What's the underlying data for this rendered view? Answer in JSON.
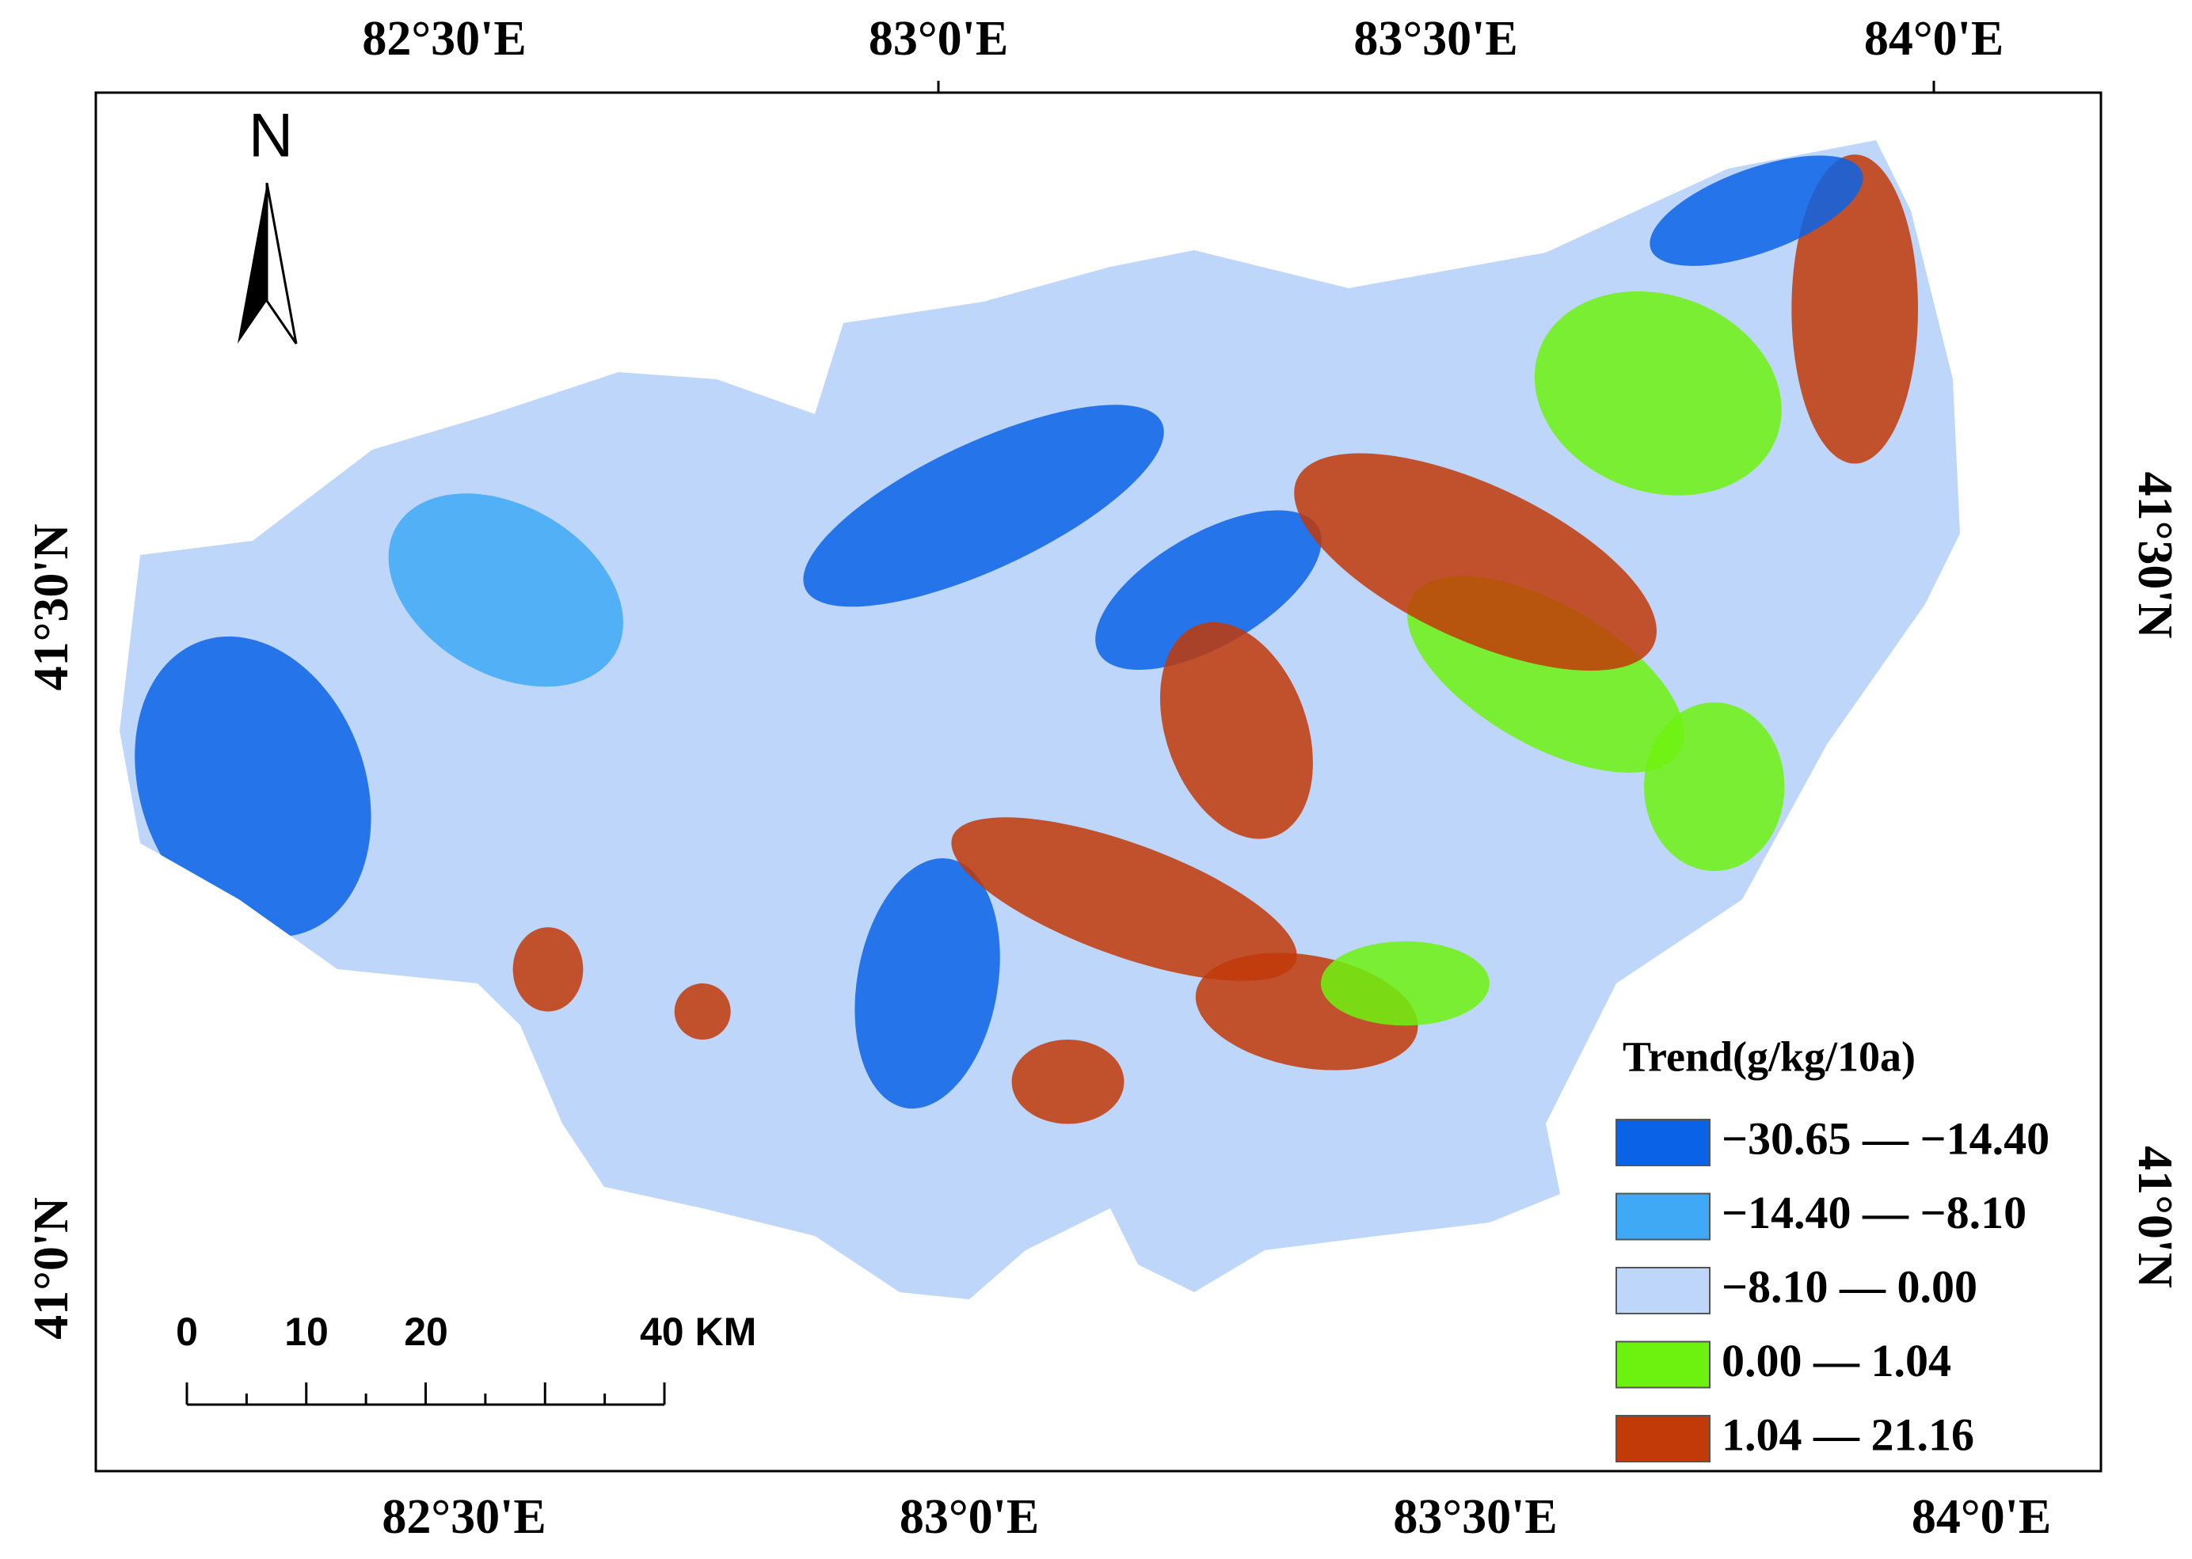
{
  "map": {
    "top_labels": [
      "82°30'E",
      "83°0'E",
      "83°30'E",
      "84°0'E"
    ],
    "bottom_labels": [
      "82°30'E",
      "83°0'E",
      "83°30'E",
      "84°0'E"
    ],
    "left_labels": [
      "41°30'N",
      "41°0'N"
    ],
    "right_labels": [
      "41°30'N",
      "41°0'N"
    ],
    "north": "N",
    "scale_labels": [
      "0",
      "10",
      "20",
      "40 KM"
    ],
    "legend": {
      "title": "Trend(g/kg/10a)",
      "items": [
        {
          "label": "−30.65 — −14.40",
          "color": "#0a63e6"
        },
        {
          "label": "−14.40 — −8.10",
          "color": "#3fa9f5"
        },
        {
          "label": "−8.10 — 0.00",
          "color": "#bed6fa"
        },
        {
          "label": "0.00 — 1.04",
          "color": "#6df20f"
        },
        {
          "label": "1.04 — 21.16",
          "color": "#c23a08"
        }
      ]
    }
  }
}
